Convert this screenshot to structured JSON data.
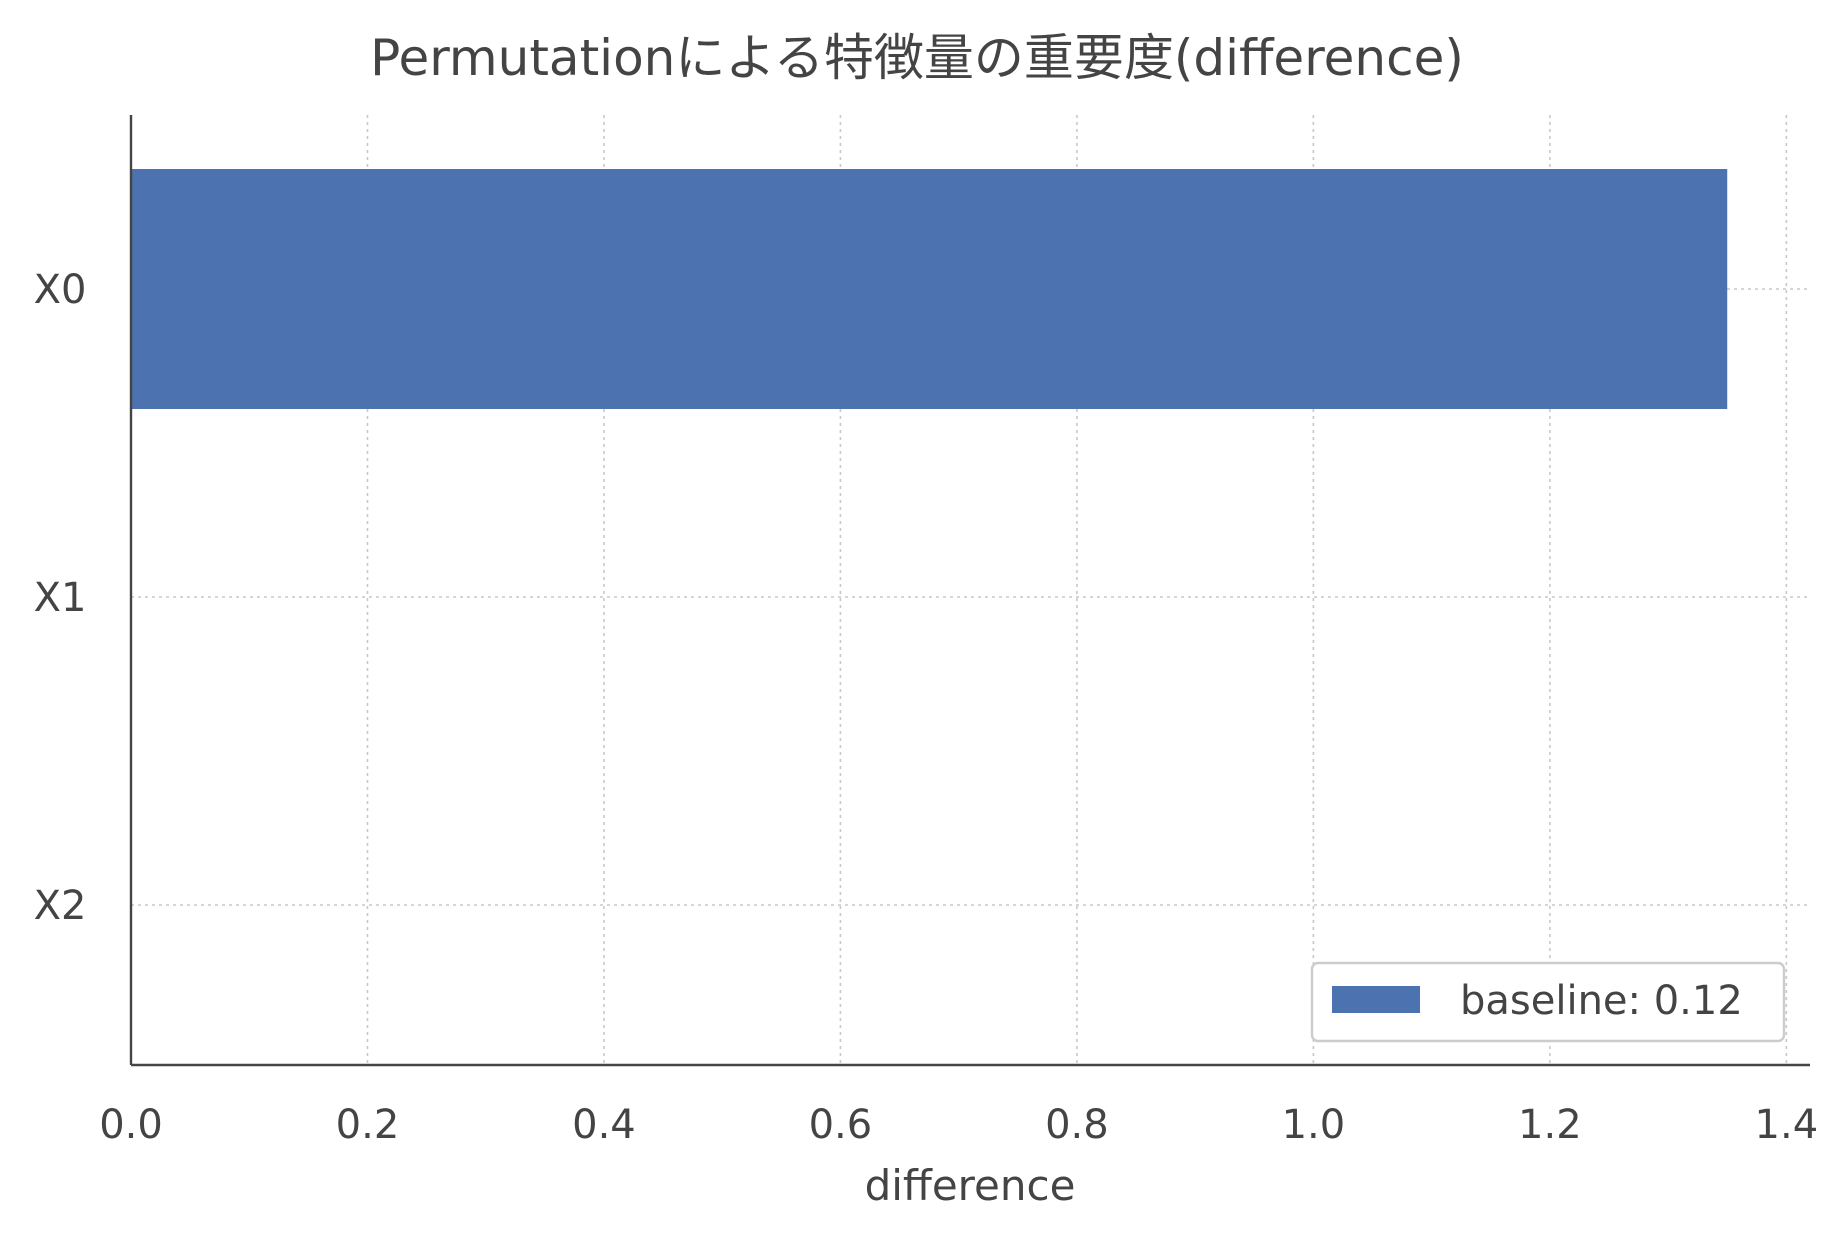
{
  "chart_data": {
    "type": "bar",
    "orientation": "horizontal",
    "title": "Permutationによる特徴量の重要度(difference)",
    "xlabel": "difference",
    "ylabel": "",
    "categories": [
      "X0",
      "X1",
      "X2"
    ],
    "values": [
      1.35,
      0.0,
      0.0
    ],
    "xlim": [
      0,
      1.42
    ],
    "xticks": [
      0.0,
      0.2,
      0.4,
      0.6,
      0.8,
      1.0,
      1.2,
      1.4
    ],
    "xtick_labels": [
      "0.0",
      "0.2",
      "0.4",
      "0.6",
      "0.8",
      "1.0",
      "1.2",
      "1.4"
    ],
    "grid": true,
    "legend": {
      "placement": "bottom-right",
      "entries": [
        {
          "label": "baseline: 0.12",
          "color": "#4c72b0"
        }
      ]
    },
    "colors": {
      "bar": "#4c72b0",
      "text": "#444444",
      "grid": "#c8c8c8"
    }
  }
}
